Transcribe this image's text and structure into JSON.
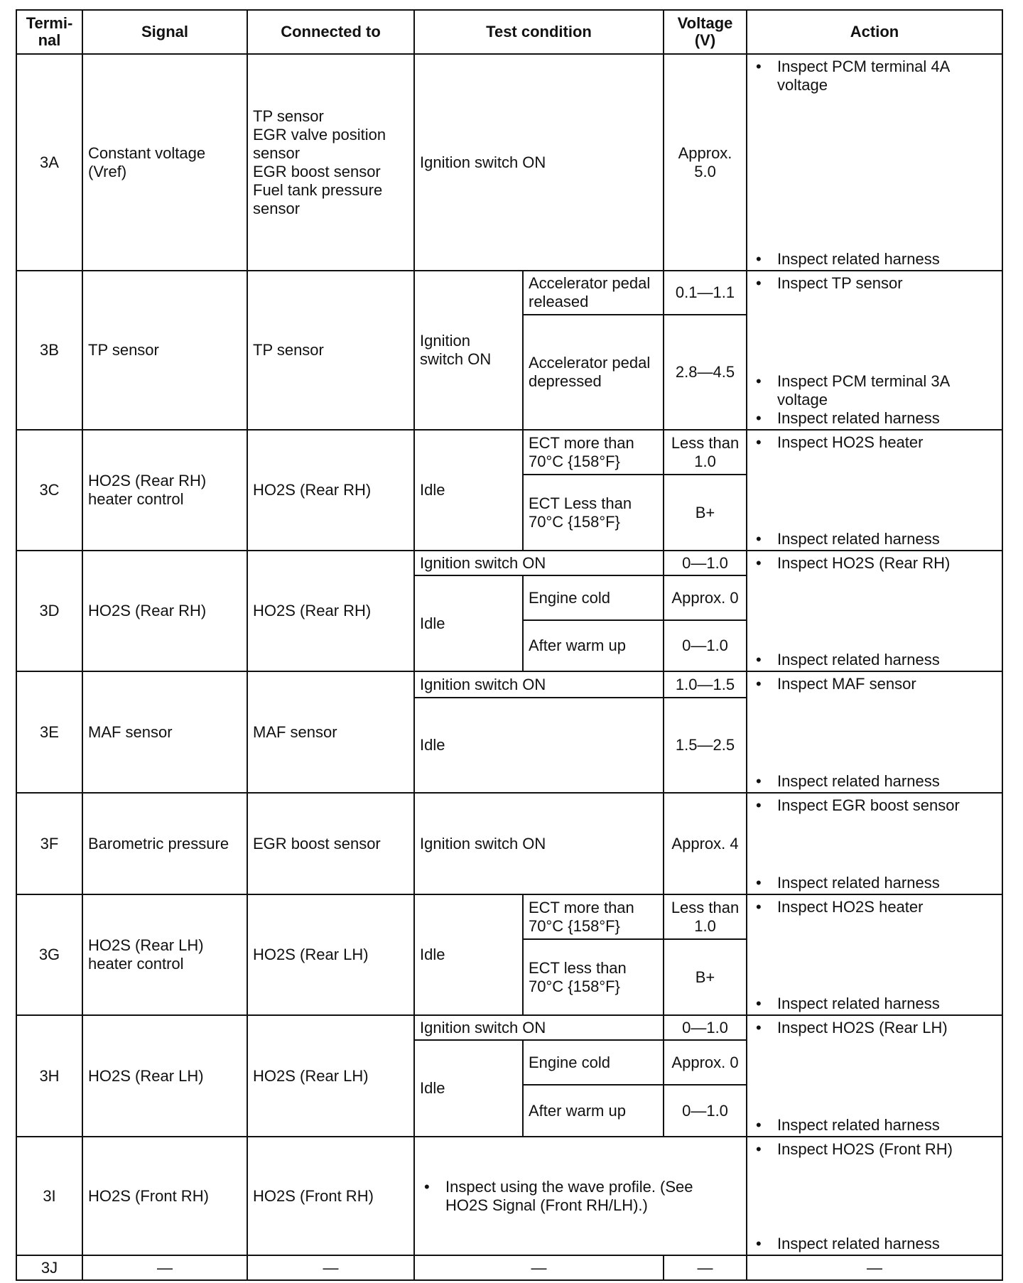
{
  "headers": {
    "terminal": "Termi-nal",
    "signal": "Signal",
    "connected": "Connected to",
    "test": "Test condition",
    "voltage": "Voltage (V)",
    "action": "Action"
  },
  "rows": {
    "a": {
      "terminal": "3A",
      "signal": "Constant voltage (Vref)",
      "connected": [
        "TP sensor",
        "EGR valve position sensor",
        "EGR boost sensor",
        "Fuel tank pressure sensor"
      ],
      "test": "Ignition switch ON",
      "voltage": "Approx. 5.0",
      "action": [
        "Inspect PCM terminal 4A voltage",
        "Inspect related harness"
      ]
    },
    "b": {
      "terminal": "3B",
      "signal": "TP sensor",
      "connected": "TP sensor",
      "test": "Ignition switch ON",
      "sub": [
        {
          "cond": "Accelerator pedal released",
          "voltage": "0.1—1.1"
        },
        {
          "cond": "Accelerator pedal depressed",
          "voltage": "2.8—4.5"
        }
      ],
      "action": [
        "Inspect TP sensor",
        "Inspect PCM terminal 3A voltage",
        "Inspect related harness"
      ]
    },
    "c": {
      "terminal": "3C",
      "signal": "HO2S (Rear RH) heater control",
      "connected": "HO2S (Rear RH)",
      "test": "Idle",
      "sub": [
        {
          "cond": "ECT more than 70°C {158°F}",
          "voltage": "Less than 1.0"
        },
        {
          "cond": "ECT Less than 70°C {158°F}",
          "voltage": "B+"
        }
      ],
      "action": [
        "Inspect HO2S heater",
        "Inspect related harness"
      ]
    },
    "d": {
      "terminal": "3D",
      "signal": "HO2S (Rear RH)",
      "connected": "HO2S (Rear RH)",
      "test1": "Ignition switch ON",
      "voltage1": "0—1.0",
      "test2": "Idle",
      "sub": [
        {
          "cond": "Engine cold",
          "voltage": "Approx. 0"
        },
        {
          "cond": "After warm up",
          "voltage": "0—1.0"
        }
      ],
      "action": [
        "Inspect HO2S (Rear RH)",
        "Inspect related harness"
      ]
    },
    "e": {
      "terminal": "3E",
      "signal": "MAF sensor",
      "connected": "MAF sensor",
      "test1": "Ignition switch ON",
      "voltage1": "1.0—1.5",
      "test2": "Idle",
      "voltage2": "1.5—2.5",
      "action": [
        "Inspect MAF sensor",
        "Inspect related harness"
      ]
    },
    "f": {
      "terminal": "3F",
      "signal": "Barometric pressure",
      "connected": "EGR boost sensor",
      "test": "Ignition switch ON",
      "voltage": "Approx. 4",
      "action": [
        "Inspect EGR boost sensor",
        "Inspect related harness"
      ]
    },
    "g": {
      "terminal": "3G",
      "signal": "HO2S (Rear LH) heater control",
      "connected": "HO2S (Rear LH)",
      "test": "Idle",
      "sub": [
        {
          "cond": "ECT more than 70°C {158°F}",
          "voltage": "Less than 1.0"
        },
        {
          "cond": "ECT less than 70°C {158°F}",
          "voltage": "B+"
        }
      ],
      "action": [
        "Inspect HO2S heater",
        "Inspect related harness"
      ]
    },
    "h": {
      "terminal": "3H",
      "signal": "HO2S (Rear LH)",
      "connected": "HO2S (Rear LH)",
      "test1": "Ignition switch ON",
      "voltage1": "0—1.0",
      "test2": "Idle",
      "sub": [
        {
          "cond": "Engine cold",
          "voltage": "Approx. 0"
        },
        {
          "cond": "After warm up",
          "voltage": "0—1.0"
        }
      ],
      "action": [
        "Inspect HO2S (Rear LH)",
        "Inspect related harness"
      ]
    },
    "i": {
      "terminal": "3I",
      "signal": "HO2S (Front RH)",
      "connected": "HO2S (Front RH)",
      "test": "Inspect using the wave profile. (See HO2S Signal (Front RH/LH).)",
      "action": [
        "Inspect HO2S (Front RH)",
        "Inspect related harness"
      ]
    },
    "j": {
      "terminal": "3J",
      "dash": "—"
    }
  }
}
